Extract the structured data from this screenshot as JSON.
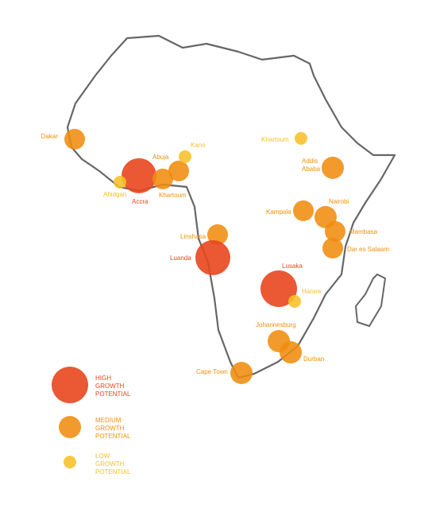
{
  "cities": [
    {
      "label": "Dakar"
    },
    {
      "label": "Accra"
    },
    {
      "label": "Abidgan"
    },
    {
      "label": "Abuja"
    },
    {
      "label": "Khartoum"
    },
    {
      "label": "Kano"
    },
    {
      "label": "Khartoum"
    },
    {
      "label": [
        "Addis",
        "Ababa"
      ]
    },
    {
      "label": "Kampala"
    },
    {
      "label": "Nairobi"
    },
    {
      "label": "Mambasa"
    },
    {
      "label": "Dar es Salaam"
    },
    {
      "label": "Linshasa"
    },
    {
      "label": "Luanda"
    },
    {
      "label": "Lusaka"
    },
    {
      "label": "Harare"
    },
    {
      "label": "Johannesburg"
    },
    {
      "label": "Durban"
    },
    {
      "label": "Cape Town"
    }
  ],
  "legend": [
    {
      "label": [
        "HIGH",
        "GROWTH",
        "POTENTIAL"
      ]
    },
    {
      "label": [
        "MEDIUM",
        "GROWTH",
        "POTENTIAL"
      ]
    },
    {
      "label": [
        "LOW",
        "GROWTH",
        "POTENTIAL"
      ]
    }
  ]
}
